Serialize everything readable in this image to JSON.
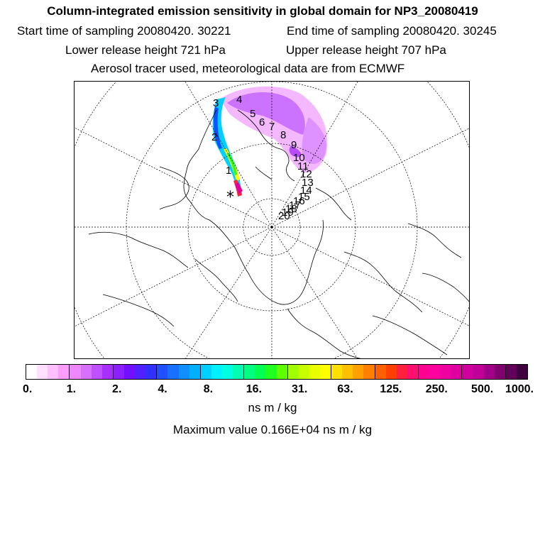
{
  "header": {
    "title": "Column-integrated emission sensitivity in global domain for NP3_20080419",
    "start_time": "Start time of sampling 20080420. 30221",
    "end_time": "End time of sampling 20080420. 30245",
    "lower_release": "Lower release height  721 hPa",
    "upper_release": "Upper release height  707 hPa",
    "tracer_info": "Aerosol tracer used, meteorological data are from ECMWF"
  },
  "map": {
    "projection": "north-polar-stereographic",
    "trajectory_labels": [
      "1",
      "2",
      "3",
      "4",
      "5",
      "6",
      "7",
      "8",
      "9",
      "10",
      "11",
      "12",
      "13",
      "14",
      "15",
      "16",
      "17",
      "18",
      "19",
      "20"
    ],
    "release_marker": "*"
  },
  "colorbar": {
    "tick_labels": [
      "0.",
      "1.",
      "2.",
      "4.",
      "8.",
      "16.",
      "31.",
      "63.",
      "125.",
      "250.",
      "500.",
      "1000."
    ],
    "colors": [
      "#ffffff",
      "#ffe0ff",
      "#ffc0ff",
      "#ff9cff",
      "#ee88ff",
      "#d870ff",
      "#c050ff",
      "#a830ff",
      "#8c20ff",
      "#7010ff",
      "#5020ff",
      "#3030ff",
      "#2050ff",
      "#1870ff",
      "#1090ff",
      "#00b0ff",
      "#00d0ff",
      "#00f0ff",
      "#00ffe0",
      "#00ffb0",
      "#00ff80",
      "#00ff50",
      "#20ff20",
      "#60ff00",
      "#a0ff00",
      "#c8ff00",
      "#e8ff00",
      "#ffff00",
      "#ffe000",
      "#ffc000",
      "#ffa000",
      "#ff8000",
      "#ff6000",
      "#ff4000",
      "#ff2040",
      "#ff1070",
      "#ff0090",
      "#ff00a0",
      "#f000a0",
      "#e000a0",
      "#d000a0",
      "#c00098",
      "#a00088",
      "#800070",
      "#600058",
      "#400040"
    ]
  },
  "units": "ns m / kg",
  "max_value": "Maximum value  0.166E+04 ns m / kg"
}
